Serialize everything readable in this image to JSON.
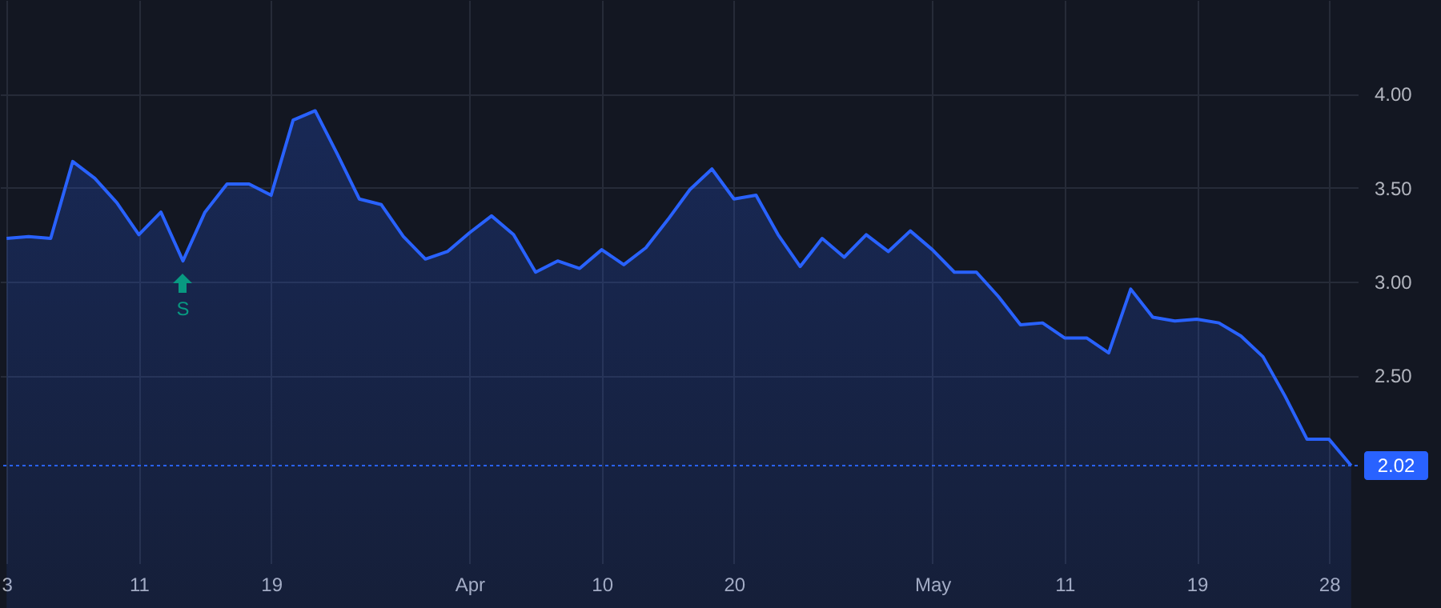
{
  "chart_data": {
    "type": "area",
    "categories": [
      "3",
      null,
      null,
      null,
      null,
      null,
      "11",
      null,
      null,
      null,
      null,
      null,
      "19",
      null,
      null,
      null,
      null,
      null,
      null,
      null,
      null,
      "Apr",
      null,
      null,
      null,
      null,
      null,
      "10",
      null,
      null,
      null,
      null,
      null,
      "20",
      null,
      null,
      null,
      null,
      null,
      null,
      null,
      null,
      "May",
      null,
      null,
      null,
      null,
      null,
      "11",
      null,
      null,
      null,
      null,
      null,
      "19",
      null,
      null,
      null,
      null,
      null,
      "28",
      null
    ],
    "series": [
      {
        "color": "#2962ff",
        "values": [
          3.23,
          3.24,
          3.23,
          3.64,
          3.55,
          3.42,
          3.25,
          3.37,
          3.11,
          3.37,
          3.52,
          3.52,
          3.46,
          3.86,
          3.91,
          3.68,
          3.44,
          3.41,
          3.24,
          3.12,
          3.16,
          3.26,
          3.35,
          3.25,
          3.05,
          3.11,
          3.07,
          3.17,
          3.09,
          3.18,
          3.33,
          3.49,
          3.6,
          3.44,
          3.46,
          3.25,
          3.08,
          3.23,
          3.13,
          3.25,
          3.16,
          3.27,
          3.17,
          3.05,
          3.05,
          2.92,
          2.77,
          2.78,
          2.7,
          2.7,
          2.62,
          2.96,
          2.81,
          2.79,
          2.8,
          2.78,
          2.71,
          2.6,
          2.39,
          2.16,
          2.16,
          2.02
        ]
      }
    ],
    "ylim": [
      1.5,
      4.5
    ],
    "yticks": [
      {
        "value": 2.5,
        "label": "2.50"
      },
      {
        "value": 3,
        "label": "3.00"
      },
      {
        "value": 3.5,
        "label": "3.50"
      },
      {
        "value": 4,
        "label": "4.00"
      }
    ],
    "grid": true,
    "ref_lines": [
      {
        "axis": "y",
        "value": 2.02,
        "label": "2.02",
        "color": "#2962ff",
        "line_style": "dotted"
      }
    ],
    "annotations": [
      {
        "text": "S",
        "y": 3.11
      }
    ]
  }
}
